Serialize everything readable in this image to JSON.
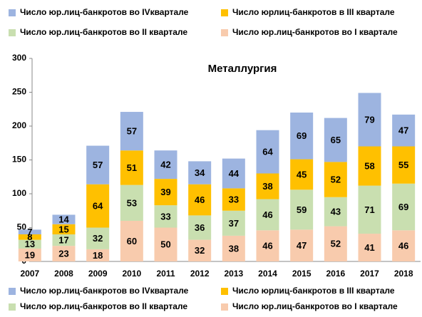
{
  "chart_data": {
    "type": "stacked_bar",
    "title": "Металлургия",
    "categories": [
      "2007",
      "2008",
      "2009",
      "2010",
      "2011",
      "2012",
      "2013",
      "2014",
      "2015",
      "2016",
      "2017",
      "2018"
    ],
    "series": [
      {
        "name": "Число юр.лиц-банкротов во I квартале",
        "color": "#f8cbad",
        "values": [
          19,
          23,
          18,
          60,
          50,
          32,
          38,
          46,
          47,
          52,
          41,
          46
        ]
      },
      {
        "name": "Число юр.лиц-банкротов во II квартале",
        "color": "#c9dfb0",
        "values": [
          13,
          17,
          32,
          53,
          33,
          36,
          37,
          46,
          59,
          43,
          71,
          69
        ]
      },
      {
        "name": "Число юрлиц-банкротов в III квартале",
        "color": "#ffc000",
        "values": [
          8,
          15,
          64,
          51,
          39,
          46,
          33,
          38,
          45,
          52,
          58,
          55
        ]
      },
      {
        "name": "Число юр.лиц-банкротов во IVквартале",
        "color": "#9db4e0",
        "values": [
          7,
          14,
          57,
          57,
          42,
          34,
          44,
          64,
          69,
          65,
          79,
          47
        ]
      }
    ],
    "ylim": [
      0,
      300
    ],
    "yticks": [
      0,
      50,
      100,
      150,
      200,
      250,
      300
    ],
    "grid": false
  }
}
